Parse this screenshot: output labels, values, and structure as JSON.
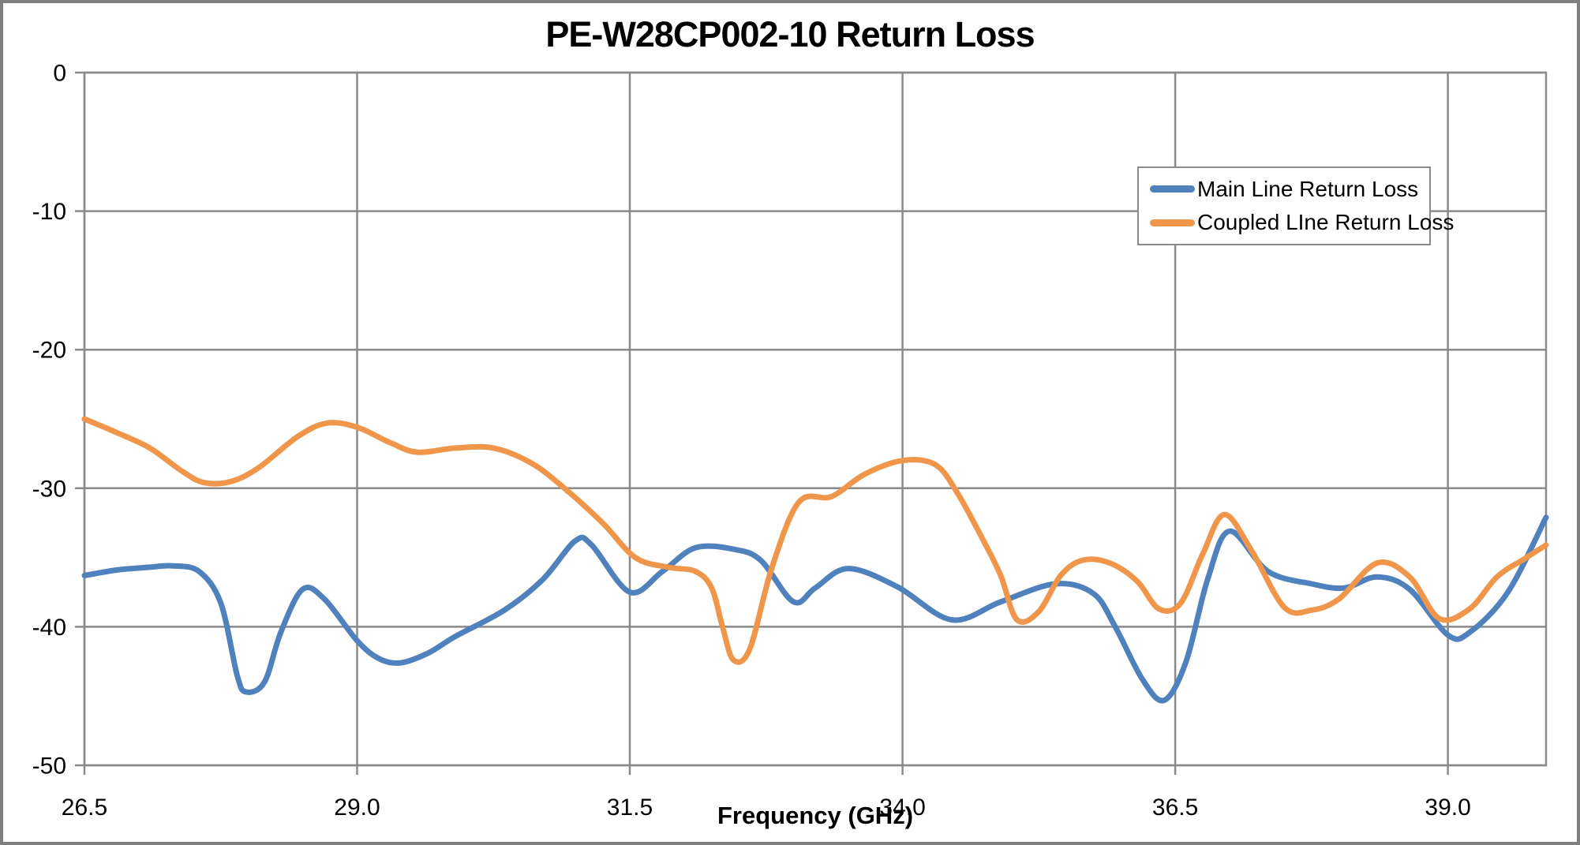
{
  "chart_data": {
    "type": "line",
    "title": "PE-W28CP002-10 Return Loss",
    "xlabel": "Frequency (GHz)",
    "ylabel": "",
    "x_range": [
      26.5,
      39.9
    ],
    "y_range": [
      -50,
      0
    ],
    "x_ticks": [
      26.5,
      29.0,
      31.5,
      34.0,
      36.5,
      39.0
    ],
    "x_tick_labels": [
      "26.5",
      "29.0",
      "31.5",
      "34.0",
      "36.5",
      "39.0"
    ],
    "y_ticks": [
      0,
      -10,
      -20,
      -30,
      -40,
      -50
    ],
    "y_tick_labels": [
      "0",
      "-10",
      "-20",
      "-30",
      "-40",
      "-50"
    ],
    "grid": true,
    "legend_position": "upper-right",
    "colors": {
      "grid": "#8a8a8a",
      "plot_border": "#8a8a8a",
      "figure_border": "#7f7f7f",
      "text": "#000000",
      "background": "#ffffff"
    },
    "series": [
      {
        "name": "Main Line Return Loss",
        "color": "#4f81bd",
        "x": [
          26.5,
          26.8,
          27.1,
          27.3,
          27.55,
          27.75,
          27.9,
          27.98,
          28.15,
          28.3,
          28.5,
          28.7,
          29.0,
          29.2,
          29.4,
          29.65,
          29.9,
          30.35,
          30.7,
          31.0,
          31.15,
          31.5,
          31.8,
          32.1,
          32.45,
          32.7,
          33.0,
          33.2,
          33.5,
          33.95,
          34.45,
          34.9,
          35.4,
          35.75,
          35.95,
          36.2,
          36.4,
          36.6,
          36.8,
          37.0,
          37.35,
          37.75,
          38.05,
          38.35,
          38.65,
          39.0,
          39.2,
          39.55,
          39.9
        ],
        "y": [
          -36.3,
          -35.9,
          -35.7,
          -35.6,
          -36.0,
          -38.3,
          -43.5,
          -44.7,
          -44.0,
          -40.4,
          -37.3,
          -38.0,
          -41.0,
          -42.3,
          -42.6,
          -41.9,
          -40.7,
          -38.8,
          -36.6,
          -33.8,
          -34.1,
          -37.5,
          -36.0,
          -34.3,
          -34.4,
          -35.2,
          -38.2,
          -37.2,
          -35.8,
          -37.1,
          -39.5,
          -38.2,
          -36.9,
          -37.6,
          -40.0,
          -43.8,
          -45.3,
          -42.5,
          -36.5,
          -33.1,
          -36.0,
          -36.9,
          -37.2,
          -36.4,
          -37.3,
          -40.6,
          -40.4,
          -37.5,
          -32.1
        ]
      },
      {
        "name": "Coupled LIne Return Loss",
        "color": "#f0964a",
        "x": [
          26.5,
          26.8,
          27.1,
          27.4,
          27.6,
          27.85,
          28.1,
          28.45,
          28.72,
          29.0,
          29.3,
          29.55,
          29.9,
          30.25,
          30.6,
          30.9,
          31.25,
          31.55,
          31.85,
          32.1,
          32.25,
          32.35,
          32.45,
          32.6,
          32.8,
          33.05,
          33.35,
          33.65,
          34.0,
          34.3,
          34.5,
          34.75,
          34.9,
          35.05,
          35.25,
          35.45,
          35.65,
          35.9,
          36.15,
          36.35,
          36.55,
          36.75,
          36.95,
          37.2,
          37.5,
          37.75,
          38.0,
          38.35,
          38.65,
          38.92,
          39.2,
          39.45,
          39.7,
          39.9
        ],
        "y": [
          -25.0,
          -26.0,
          -27.1,
          -28.8,
          -29.6,
          -29.5,
          -28.5,
          -26.3,
          -25.3,
          -25.6,
          -26.7,
          -27.4,
          -27.1,
          -27.1,
          -28.2,
          -30.0,
          -32.5,
          -35.0,
          -35.7,
          -36.0,
          -37.2,
          -40.0,
          -42.4,
          -41.6,
          -35.8,
          -31.0,
          -30.6,
          -29.0,
          -28.0,
          -28.3,
          -30.3,
          -33.9,
          -36.3,
          -39.5,
          -38.9,
          -36.3,
          -35.2,
          -35.4,
          -36.7,
          -38.7,
          -38.3,
          -34.8,
          -31.9,
          -34.5,
          -38.6,
          -38.8,
          -38.0,
          -35.4,
          -36.4,
          -39.4,
          -38.7,
          -36.4,
          -35.1,
          -34.1
        ]
      }
    ]
  }
}
